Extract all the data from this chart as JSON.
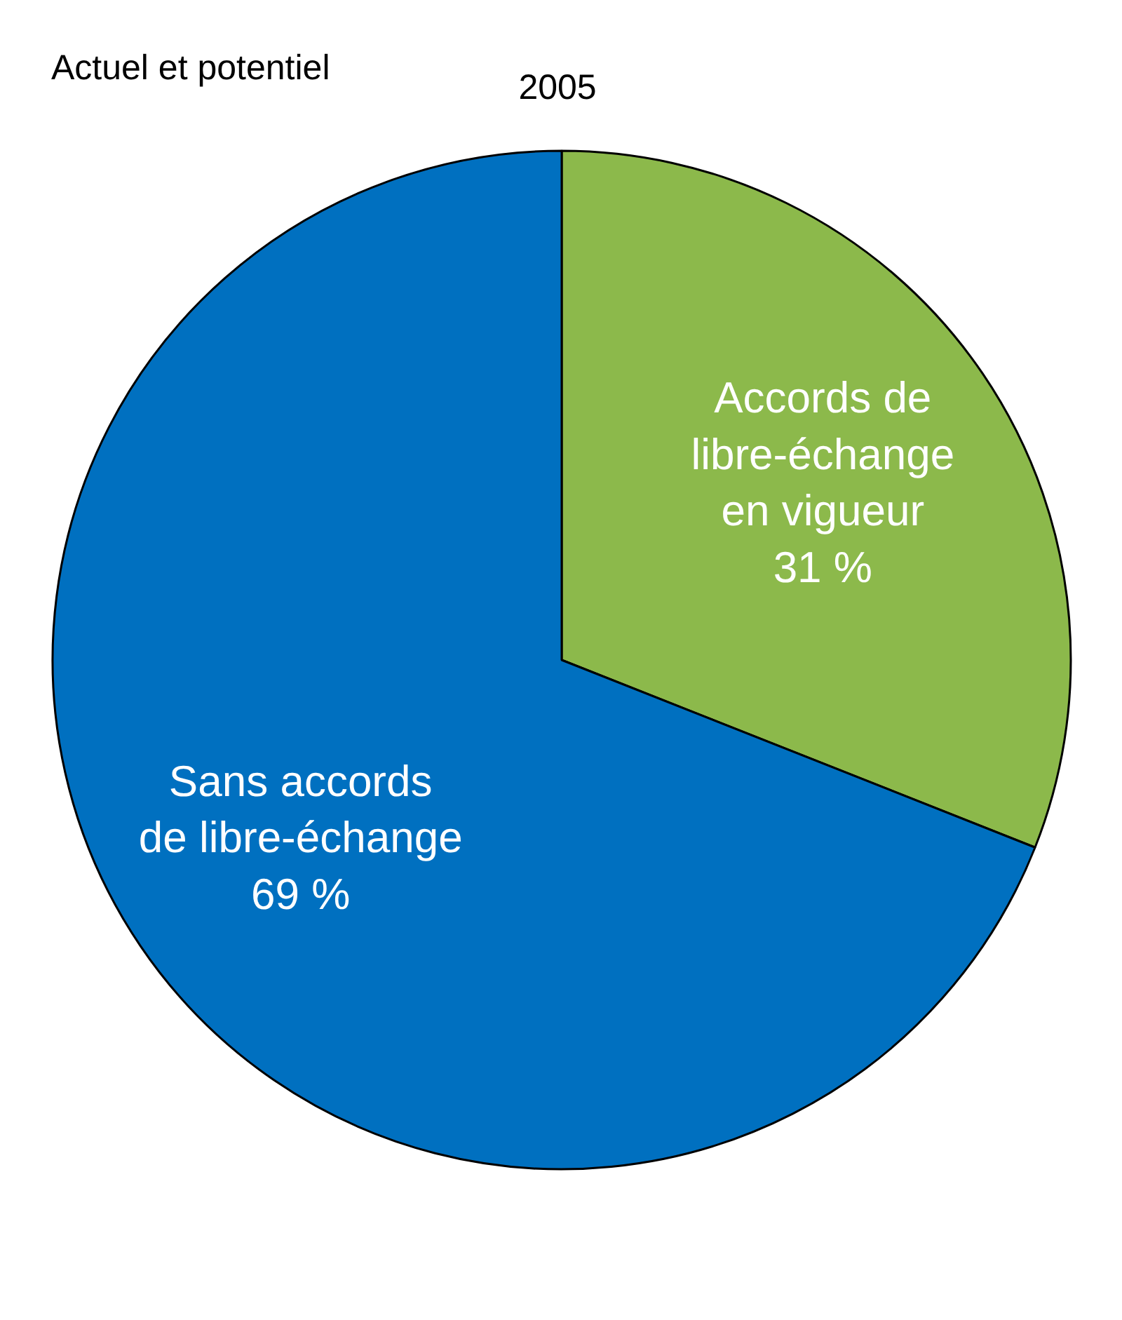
{
  "chart_data": {
    "type": "pie",
    "title": "2005",
    "subtitle": "Actuel et potentiel",
    "categories": [
      "Accords de\nlibre-échange\nen vigueur",
      "Sans accords\nde libre-échange"
    ],
    "values": [
      31,
      69
    ],
    "colors": [
      "#8cb94b",
      "#0070c0"
    ],
    "value_labels": [
      "31 %",
      "69 %"
    ]
  }
}
